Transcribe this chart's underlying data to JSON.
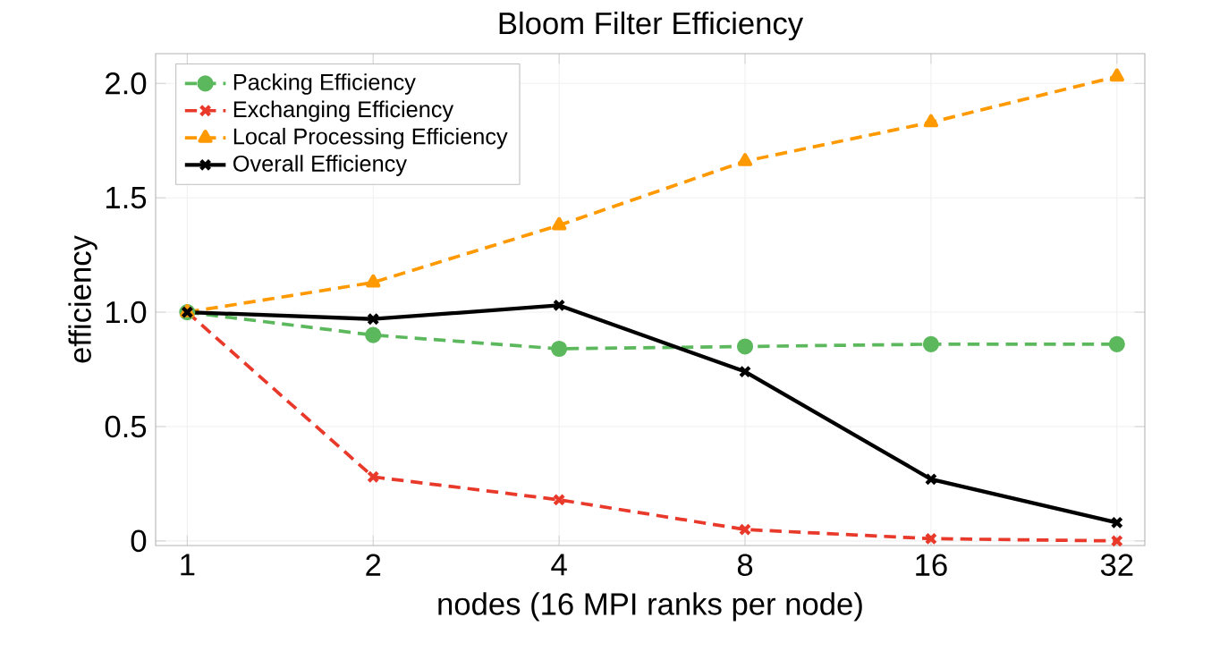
{
  "chart_data": {
    "type": "line",
    "title": "Bloom Filter Efficiency",
    "xlabel": "nodes (16 MPI ranks per node)",
    "ylabel": "efficiency",
    "categories": [
      "1",
      "2",
      "4",
      "8",
      "16",
      "32"
    ],
    "series": [
      {
        "name": "Packing Efficiency",
        "color": "#5cb85c",
        "marker": "circle",
        "line_style": "dashed",
        "values": [
          1.0,
          0.9,
          0.84,
          0.85,
          0.86,
          0.86
        ]
      },
      {
        "name": "Exchanging Efficiency",
        "color": "#e8392a",
        "marker": "cross",
        "line_style": "dashed",
        "values": [
          1.0,
          0.28,
          0.18,
          0.05,
          0.01,
          0.0
        ]
      },
      {
        "name": "Local Processing Efficiency",
        "color": "#ff9900",
        "marker": "triangle",
        "line_style": "dashed",
        "values": [
          1.0,
          1.13,
          1.38,
          1.66,
          1.83,
          2.03
        ]
      },
      {
        "name": "Overall Efficiency",
        "color": "#000000",
        "marker": "cross",
        "line_style": "solid",
        "values": [
          1.0,
          0.97,
          1.03,
          0.74,
          0.27,
          0.08
        ]
      }
    ],
    "ylim": [
      -0.02,
      2.13
    ],
    "yticks": [
      0,
      0.5,
      {
        "value": 1,
        "label": "1.0"
      },
      1.5,
      {
        "value": 2,
        "label": "2.0"
      }
    ],
    "grid": true,
    "legend": "top left"
  }
}
